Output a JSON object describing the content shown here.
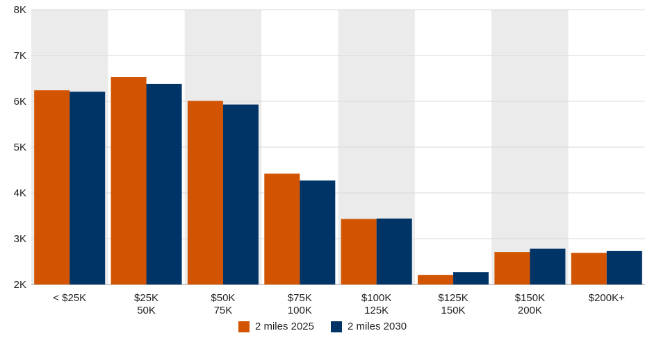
{
  "chart_data": {
    "type": "bar",
    "categories": [
      [
        "< $25K"
      ],
      [
        "$25K",
        "50K"
      ],
      [
        "$50K",
        "75K"
      ],
      [
        "$75K",
        "100K"
      ],
      [
        "$100K",
        "125K"
      ],
      [
        "$125K",
        "150K"
      ],
      [
        "$150K",
        "200K"
      ],
      [
        "$200K+"
      ]
    ],
    "series": [
      {
        "name": "2 miles 2025",
        "color": "#d35400",
        "values": [
          6240,
          6530,
          6010,
          4420,
          3430,
          2210,
          2710,
          2690
        ]
      },
      {
        "name": "2 miles 2030",
        "color": "#003366",
        "values": [
          6210,
          6380,
          5930,
          4270,
          3440,
          2270,
          2780,
          2730
        ]
      }
    ],
    "y_ticks": [
      "2K",
      "3K",
      "4K",
      "5K",
      "6K",
      "7K",
      "8K"
    ],
    "ylim": [
      2000,
      8000
    ],
    "grid": true,
    "alternating_band_color": "#ebebeb",
    "legend_position": "bottom"
  }
}
